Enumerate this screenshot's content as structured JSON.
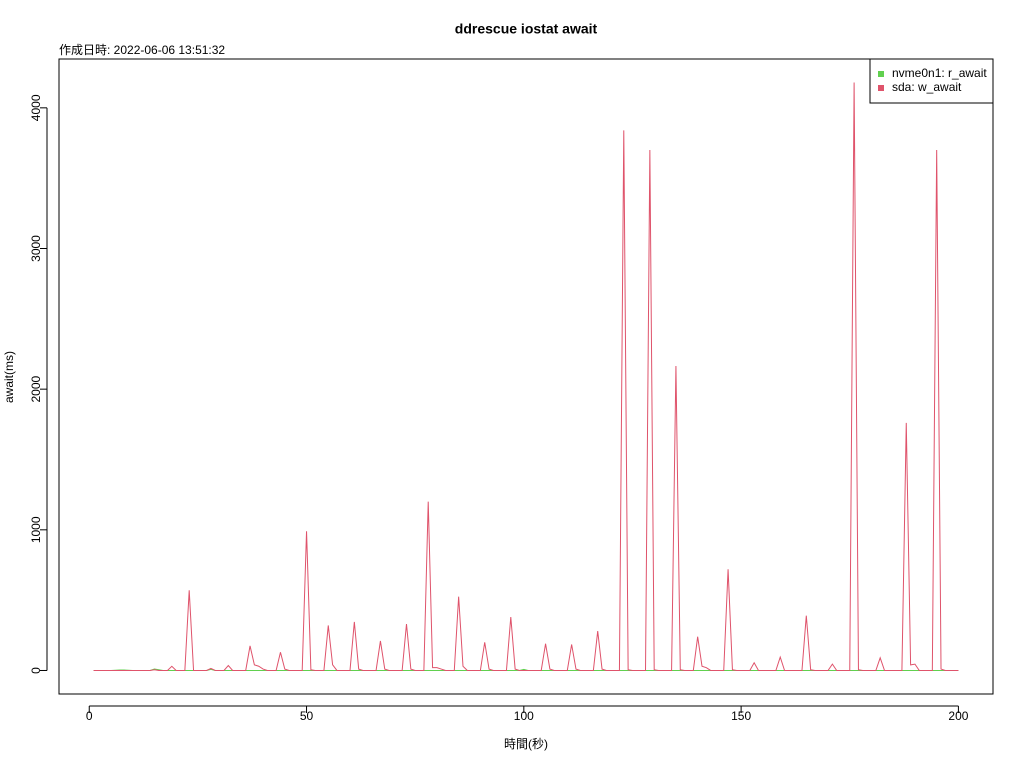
{
  "chart_data": {
    "type": "line",
    "title": "ddrescue iostat await",
    "subtitle": "作成日時: 2022-06-06 13:51:32",
    "x_label": "時間(秒)",
    "y_label": "await(ms)",
    "x": [
      1,
      2,
      3,
      4,
      5,
      6,
      7,
      8,
      9,
      10,
      11,
      12,
      13,
      14,
      15,
      16,
      17,
      18,
      19,
      20,
      21,
      22,
      23,
      24,
      25,
      26,
      27,
      28,
      29,
      30,
      31,
      32,
      33,
      34,
      35,
      36,
      37,
      38,
      39,
      40,
      41,
      42,
      43,
      44,
      45,
      46,
      47,
      48,
      49,
      50,
      51,
      52,
      53,
      54,
      55,
      56,
      57,
      58,
      59,
      60,
      61,
      62,
      63,
      64,
      65,
      66,
      67,
      68,
      69,
      70,
      71,
      72,
      73,
      74,
      75,
      76,
      77,
      78,
      79,
      80,
      81,
      82,
      83,
      84,
      85,
      86,
      87,
      88,
      89,
      90,
      91,
      92,
      93,
      94,
      95,
      96,
      97,
      98,
      99,
      100,
      101,
      102,
      103,
      104,
      105,
      106,
      107,
      108,
      109,
      110,
      111,
      112,
      113,
      114,
      115,
      116,
      117,
      118,
      119,
      120,
      121,
      122,
      123,
      124,
      125,
      126,
      127,
      128,
      129,
      130,
      131,
      132,
      133,
      134,
      135,
      136,
      137,
      138,
      139,
      140,
      141,
      142,
      143,
      144,
      145,
      146,
      147,
      148,
      149,
      150,
      151,
      152,
      153,
      154,
      155,
      156,
      157,
      158,
      159,
      160,
      161,
      162,
      163,
      164,
      165,
      166,
      167,
      168,
      169,
      170,
      171,
      172,
      173,
      174,
      175,
      176,
      177,
      178,
      179,
      180,
      181,
      182,
      183,
      184,
      185,
      186,
      187,
      188,
      189,
      190,
      191,
      192,
      193,
      194,
      195,
      196,
      197,
      198,
      199,
      200
    ],
    "series": [
      {
        "name": "nvme0n1: r_await",
        "color": "#61D04F",
        "values": [
          0,
          0,
          0,
          0,
          0,
          2,
          3,
          3,
          2,
          0,
          0,
          0,
          0,
          0,
          10,
          5,
          0,
          0,
          0,
          0,
          0,
          0,
          0,
          0,
          0,
          0,
          0,
          8,
          0,
          0,
          0,
          0,
          0,
          0,
          0,
          0,
          0,
          0,
          0,
          0,
          0,
          0,
          0,
          0,
          0,
          0,
          0,
          0,
          0,
          0,
          0,
          0,
          0,
          0,
          0,
          0,
          0,
          0,
          0,
          0,
          0,
          0,
          0,
          0,
          0,
          0,
          0,
          0,
          0,
          0,
          0,
          0,
          0,
          0,
          0,
          0,
          0,
          0,
          0,
          0,
          0,
          0,
          0,
          0,
          0,
          0,
          0,
          0,
          0,
          0,
          0,
          0,
          0,
          0,
          0,
          0,
          0,
          0,
          0,
          8,
          0,
          0,
          0,
          0,
          0,
          0,
          0,
          0,
          0,
          0,
          0,
          0,
          0,
          0,
          0,
          0,
          0,
          0,
          0,
          0,
          0,
          0,
          0,
          0,
          0,
          0,
          0,
          0,
          0,
          0,
          0,
          0,
          0,
          0,
          0,
          0,
          0,
          0,
          0,
          0,
          0,
          0,
          0,
          0,
          0,
          0,
          0,
          0,
          0,
          0,
          0,
          0,
          0,
          0,
          0,
          0,
          0,
          0,
          0,
          0,
          0,
          0,
          0,
          0,
          0,
          0,
          0,
          0,
          0,
          0,
          0,
          0,
          0,
          0,
          0,
          0,
          0,
          0,
          0,
          0,
          0,
          0,
          0,
          0,
          0,
          0,
          0,
          0,
          0,
          0,
          0,
          0,
          0,
          0,
          0,
          0,
          0,
          0,
          0,
          0
        ]
      },
      {
        "name": "sda: w_await",
        "color": "#DF536B",
        "values": [
          0,
          0,
          0,
          0,
          0,
          0,
          0,
          0,
          0,
          0,
          0,
          0,
          0,
          0,
          5,
          0,
          0,
          0,
          30,
          0,
          0,
          0,
          570,
          0,
          0,
          0,
          0,
          15,
          0,
          0,
          0,
          35,
          0,
          0,
          0,
          0,
          175,
          40,
          30,
          10,
          0,
          0,
          0,
          130,
          10,
          0,
          0,
          0,
          0,
          990,
          5,
          0,
          0,
          0,
          320,
          40,
          0,
          0,
          0,
          0,
          345,
          10,
          0,
          0,
          0,
          0,
          210,
          10,
          0,
          0,
          0,
          0,
          330,
          10,
          0,
          0,
          0,
          1200,
          20,
          20,
          10,
          0,
          0,
          0,
          525,
          30,
          0,
          0,
          0,
          0,
          200,
          10,
          0,
          0,
          0,
          0,
          380,
          10,
          0,
          0,
          0,
          0,
          0,
          0,
          190,
          10,
          0,
          0,
          0,
          0,
          185,
          10,
          0,
          0,
          0,
          0,
          280,
          10,
          0,
          0,
          0,
          0,
          3840,
          5,
          0,
          0,
          0,
          0,
          3700,
          5,
          0,
          0,
          0,
          0,
          2165,
          5,
          0,
          0,
          0,
          240,
          30,
          20,
          0,
          0,
          0,
          0,
          720,
          5,
          0,
          0,
          0,
          0,
          55,
          0,
          0,
          0,
          0,
          0,
          95,
          0,
          0,
          0,
          0,
          0,
          390,
          5,
          0,
          0,
          0,
          0,
          45,
          0,
          0,
          0,
          0,
          4180,
          5,
          0,
          0,
          0,
          0,
          90,
          0,
          0,
          0,
          0,
          0,
          1760,
          40,
          45,
          0,
          0,
          0,
          0,
          3700,
          10,
          0,
          0,
          0,
          0
        ]
      }
    ],
    "xlim": [
      -6.96,
      207.96
    ],
    "xticks": [
      0,
      50,
      100,
      150,
      200
    ],
    "ylim": [
      -167.2,
      4347.2
    ],
    "yticks": [
      0,
      1000,
      2000,
      3000,
      4000
    ],
    "legend": "topright"
  }
}
